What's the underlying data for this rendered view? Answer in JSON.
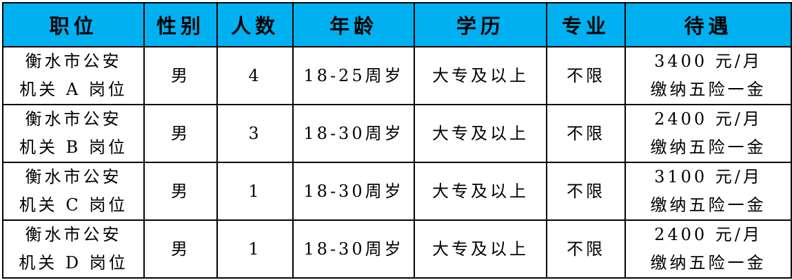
{
  "header_bg": "#00B0F0",
  "headers": [
    "职位",
    "性别",
    "人数",
    "年龄",
    "学历",
    "专业",
    "待遇"
  ],
  "rows": [
    {
      "position": [
        "衡水市公安",
        "机关 A 岗位"
      ],
      "gender": "男",
      "count": "4",
      "age": "18-25周岁",
      "education": "大专及以上",
      "major": "不限",
      "pay": [
        "3400 元/月",
        "缴纳五险一金"
      ]
    },
    {
      "position": [
        "衡水市公安",
        "机关 B 岗位"
      ],
      "gender": "男",
      "count": "3",
      "age": "18-30周岁",
      "education": "大专及以上",
      "major": "不限",
      "pay": [
        "2400 元/月",
        "缴纳五险一金"
      ]
    },
    {
      "position": [
        "衡水市公安",
        "机关 C 岗位"
      ],
      "gender": "男",
      "count": "1",
      "age": "18-30周岁",
      "education": "大专及以上",
      "major": "不限",
      "pay": [
        "3100 元/月",
        "缴纳五险一金"
      ]
    },
    {
      "position": [
        "衡水市公安",
        "机关 D 岗位"
      ],
      "gender": "男",
      "count": "1",
      "age": "18-30周岁",
      "education": "大专及以上",
      "major": "不限",
      "pay": [
        "2400 元/月",
        "缴纳五险一金"
      ]
    }
  ]
}
